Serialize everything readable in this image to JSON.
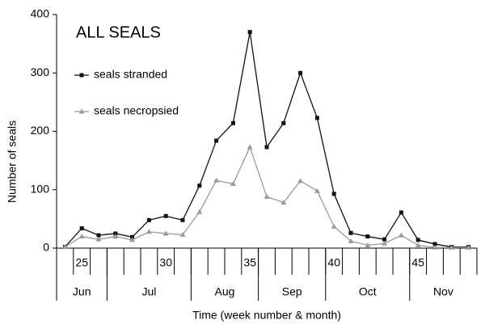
{
  "chart_data": {
    "type": "line",
    "annotation": "ALL SEALS",
    "x_label": "Time (week number & month)",
    "y_label": "Number of seals",
    "x": [
      24,
      25,
      26,
      27,
      28,
      29,
      30,
      31,
      32,
      33,
      34,
      35,
      36,
      37,
      38,
      39,
      40,
      41,
      42,
      43,
      44,
      45,
      46,
      47,
      48
    ],
    "series": [
      {
        "name": "seals stranded",
        "color": "#111111",
        "marker": "square",
        "values": [
          2,
          34,
          22,
          25,
          19,
          48,
          55,
          48,
          107,
          184,
          214,
          370,
          173,
          214,
          300,
          223,
          93,
          26,
          20,
          15,
          61,
          14,
          7,
          2,
          2
        ]
      },
      {
        "name": "seals necropsied",
        "color": "#9a9a9a",
        "marker": "triangle",
        "values": [
          2,
          20,
          15,
          20,
          14,
          28,
          25,
          23,
          62,
          116,
          110,
          173,
          88,
          78,
          115,
          98,
          37,
          12,
          5,
          8,
          22,
          5,
          1,
          1,
          1
        ]
      }
    ],
    "months": [
      {
        "label": "Jun",
        "start": 23.5,
        "end": 26.5
      },
      {
        "label": "Jul",
        "start": 26.5,
        "end": 31.5
      },
      {
        "label": "Aug",
        "start": 31.5,
        "end": 35.5
      },
      {
        "label": "Sep",
        "start": 35.5,
        "end": 39.5
      },
      {
        "label": "Oct",
        "start": 39.5,
        "end": 44.5
      },
      {
        "label": "Nov",
        "start": 44.5,
        "end": 48.5
      }
    ],
    "xlim": [
      23.5,
      48.5
    ],
    "xticks": [
      25,
      30,
      35,
      40,
      45
    ],
    "ylim": [
      0,
      400
    ],
    "yticks": [
      0,
      100,
      200,
      300,
      400
    ],
    "legend": "top-left"
  }
}
